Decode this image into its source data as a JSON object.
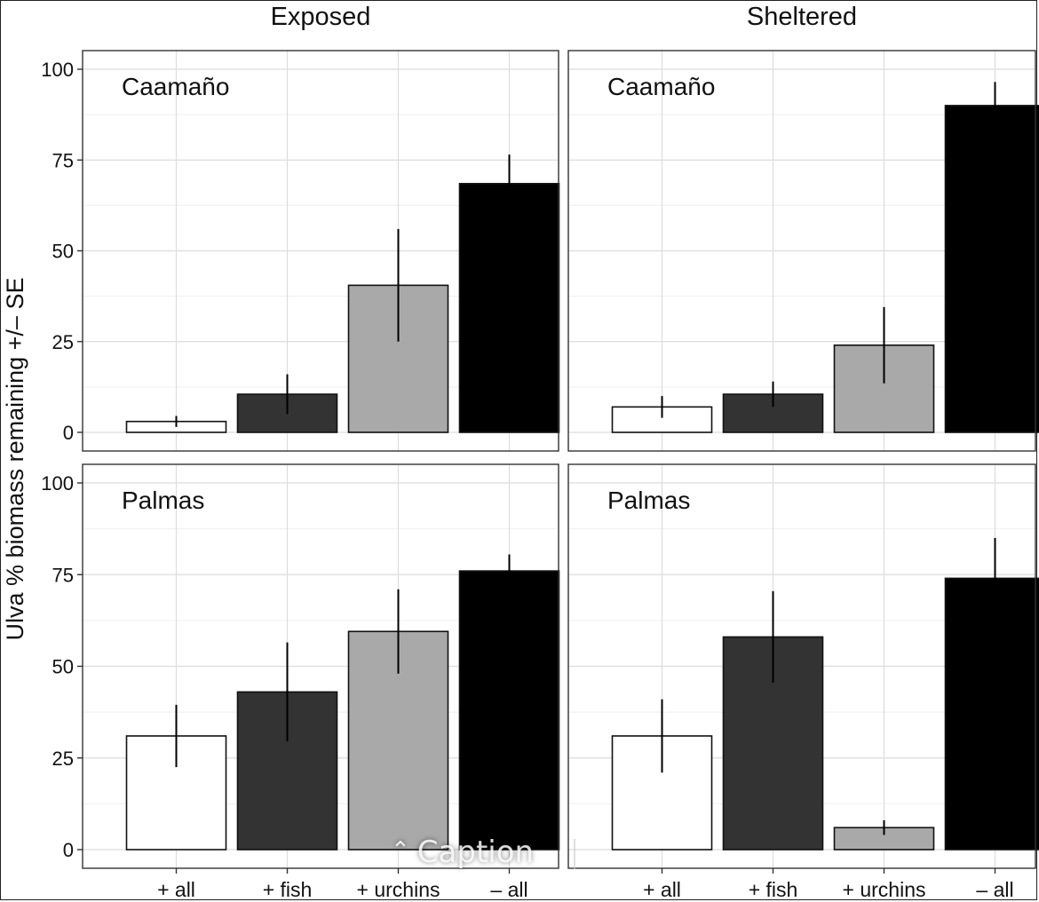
{
  "chart_data": {
    "type": "bar",
    "ylabel": "Ulva % biomass remaining +/– SE",
    "ylim": [
      0,
      100
    ],
    "yticks": [
      0,
      25,
      50,
      75,
      100
    ],
    "grid": true,
    "categories": [
      "+ all",
      "+ fish",
      "+ urchins",
      "– all"
    ],
    "category_colors": [
      "#ffffff",
      "#333333",
      "#a9a9a9",
      "#000000"
    ],
    "columns": [
      "Exposed",
      "Sheltered"
    ],
    "rows": [
      "Caamaño",
      "Palmas"
    ],
    "panels": [
      {
        "column": "Exposed",
        "row": "Caamaño",
        "values": [
          3,
          10.5,
          40.5,
          68.5
        ],
        "se": [
          1.5,
          5.5,
          15.5,
          8
        ]
      },
      {
        "column": "Sheltered",
        "row": "Caamaño",
        "values": [
          7,
          10.5,
          24,
          90
        ],
        "se": [
          3,
          3.5,
          10.5,
          6.5
        ]
      },
      {
        "column": "Exposed",
        "row": "Palmas",
        "values": [
          31,
          43,
          59.5,
          76
        ],
        "se": [
          8.5,
          13.5,
          11.5,
          4.5
        ]
      },
      {
        "column": "Sheltered",
        "row": "Palmas",
        "values": [
          31,
          58,
          6,
          74
        ],
        "se": [
          10,
          12.5,
          2,
          11
        ]
      }
    ]
  },
  "overlay": {
    "caption_label": "Caption",
    "caption_icon": "chevron-up-icon"
  }
}
